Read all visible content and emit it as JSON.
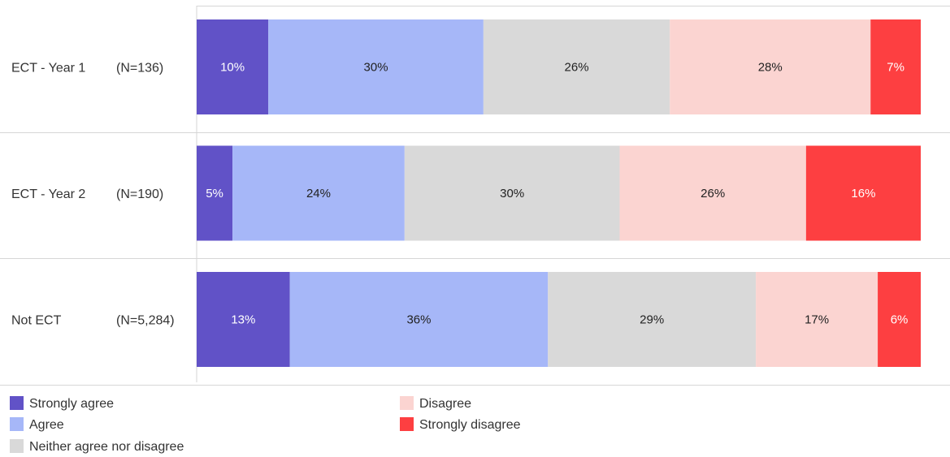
{
  "chart_data": {
    "type": "bar",
    "orientation": "horizontal",
    "stacked": true,
    "title": "",
    "xlabel": "",
    "ylabel": "",
    "grid": false,
    "legend_position": "bottom",
    "value_format": "percent",
    "categories": [
      "ECT - Year 1",
      "ECT - Year 2",
      "Not ECT"
    ],
    "sample_sizes": [
      "(N=136)",
      "(N=190)",
      "(N=5,284)"
    ],
    "series": [
      {
        "name": "Strongly agree",
        "color": "#6152c7",
        "label_color": "#ffffff",
        "values": [
          10,
          5,
          13
        ]
      },
      {
        "name": "Agree",
        "color": "#a6b7f8",
        "label_color": "#222222",
        "values": [
          30,
          24,
          36
        ]
      },
      {
        "name": "Neither agree nor disagree",
        "color": "#d9d9d9",
        "label_color": "#222222",
        "values": [
          26,
          30,
          29
        ]
      },
      {
        "name": "Disagree",
        "color": "#fbd4d1",
        "label_color": "#222222",
        "values": [
          28,
          26,
          17
        ]
      },
      {
        "name": "Strongly disagree",
        "color": "#fd3f41",
        "label_color": "#ffffff",
        "values": [
          7,
          16,
          6
        ]
      }
    ]
  }
}
